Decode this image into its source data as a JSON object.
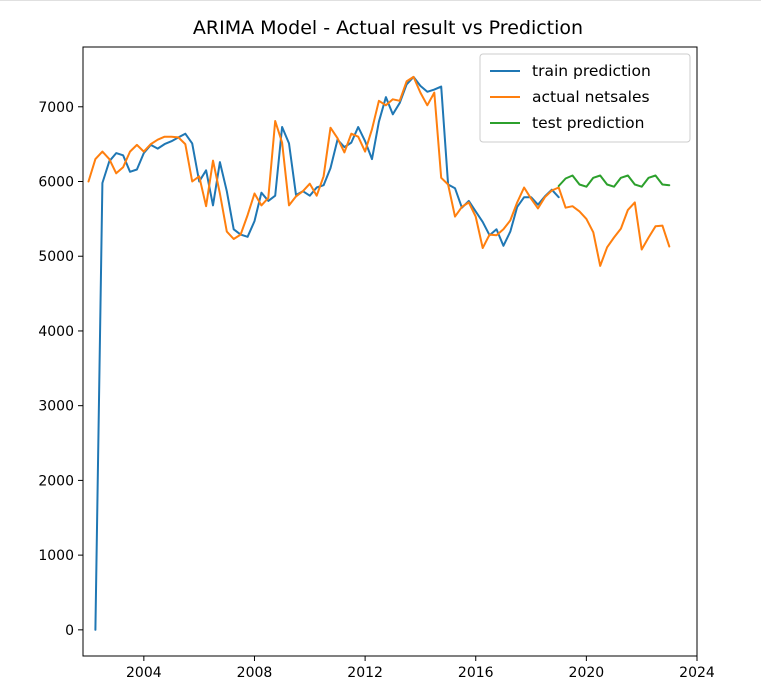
{
  "chart_data": {
    "type": "line",
    "title": "ARIMA Model - Actual result vs Prediction",
    "xlabel": "",
    "ylabel": "",
    "xlim": [
      2001.8,
      2024.0
    ],
    "ylim": [
      -350,
      7800
    ],
    "x_ticks": [
      2004,
      2008,
      2012,
      2016,
      2020,
      2024
    ],
    "x_tick_labels": [
      "2004",
      "2008",
      "2012",
      "2016",
      "2020",
      "2024"
    ],
    "y_ticks": [
      0,
      1000,
      2000,
      3000,
      4000,
      5000,
      6000,
      7000
    ],
    "y_tick_labels": [
      "0",
      "1000",
      "2000",
      "3000",
      "4000",
      "5000",
      "6000",
      "7000"
    ],
    "grid": false,
    "legend_position": "top-right",
    "series": [
      {
        "name": "train prediction",
        "color": "#1f77b4",
        "x": [
          2002.25,
          2002.5,
          2002.75,
          2003.0,
          2003.25,
          2003.5,
          2003.75,
          2004.0,
          2004.25,
          2004.5,
          2004.75,
          2005.0,
          2005.25,
          2005.5,
          2005.75,
          2006.0,
          2006.25,
          2006.5,
          2006.75,
          2007.0,
          2007.25,
          2007.5,
          2007.75,
          2008.0,
          2008.25,
          2008.5,
          2008.75,
          2009.0,
          2009.25,
          2009.5,
          2009.75,
          2010.0,
          2010.25,
          2010.5,
          2010.75,
          2011.0,
          2011.25,
          2011.5,
          2011.75,
          2012.0,
          2012.25,
          2012.5,
          2012.75,
          2013.0,
          2013.25,
          2013.5,
          2013.75,
          2014.0,
          2014.25,
          2014.5,
          2014.75,
          2015.0,
          2015.25,
          2015.5,
          2015.75,
          2016.0,
          2016.25,
          2016.5,
          2016.75,
          2017.0,
          2017.25,
          2017.5,
          2017.75,
          2018.0,
          2018.25,
          2018.5,
          2018.75,
          2019.0
        ],
        "values": [
          0,
          5980,
          6270,
          6380,
          6350,
          6130,
          6160,
          6380,
          6490,
          6440,
          6500,
          6540,
          6590,
          6640,
          6510,
          6000,
          6150,
          5680,
          6260,
          5870,
          5360,
          5290,
          5260,
          5470,
          5850,
          5740,
          5810,
          6730,
          6510,
          5820,
          5870,
          5810,
          5920,
          5950,
          6180,
          6560,
          6460,
          6520,
          6730,
          6540,
          6300,
          6800,
          7130,
          6900,
          7050,
          7300,
          7400,
          7280,
          7200,
          7230,
          7270,
          5960,
          5910,
          5650,
          5740,
          5600,
          5460,
          5280,
          5360,
          5140,
          5330,
          5660,
          5790,
          5790,
          5690,
          5800,
          5890,
          5790
        ],
        "legend": "train prediction"
      },
      {
        "name": "actual netsales",
        "color": "#ff7f0e",
        "x": [
          2002.0,
          2002.25,
          2002.5,
          2002.75,
          2003.0,
          2003.25,
          2003.5,
          2003.75,
          2004.0,
          2004.25,
          2004.5,
          2004.75,
          2005.0,
          2005.25,
          2005.5,
          2005.75,
          2006.0,
          2006.25,
          2006.5,
          2006.75,
          2007.0,
          2007.25,
          2007.5,
          2007.75,
          2008.0,
          2008.25,
          2008.5,
          2008.75,
          2009.0,
          2009.25,
          2009.5,
          2009.75,
          2010.0,
          2010.25,
          2010.5,
          2010.75,
          2011.0,
          2011.25,
          2011.5,
          2011.75,
          2012.0,
          2012.25,
          2012.5,
          2012.75,
          2013.0,
          2013.25,
          2013.5,
          2013.75,
          2014.0,
          2014.25,
          2014.5,
          2014.75,
          2015.0,
          2015.25,
          2015.5,
          2015.75,
          2016.0,
          2016.25,
          2016.5,
          2016.75,
          2017.0,
          2017.25,
          2017.5,
          2017.75,
          2018.0,
          2018.25,
          2018.5,
          2018.75,
          2019.0,
          2019.25,
          2019.5,
          2019.75,
          2020.0,
          2020.25,
          2020.5,
          2020.75,
          2021.0,
          2021.25,
          2021.5,
          2021.75,
          2022.0,
          2022.25,
          2022.5,
          2022.75,
          2023.0
        ],
        "values": [
          6000,
          6300,
          6400,
          6300,
          6110,
          6190,
          6400,
          6490,
          6400,
          6500,
          6560,
          6600,
          6600,
          6590,
          6500,
          6000,
          6070,
          5670,
          6280,
          5840,
          5330,
          5230,
          5290,
          5550,
          5840,
          5680,
          5780,
          6810,
          6520,
          5680,
          5800,
          5870,
          5970,
          5810,
          6070,
          6720,
          6580,
          6390,
          6640,
          6600,
          6400,
          6700,
          7080,
          7020,
          7100,
          7080,
          7340,
          7400,
          7190,
          7020,
          7190,
          6050,
          5960,
          5530,
          5660,
          5720,
          5530,
          5110,
          5290,
          5280,
          5360,
          5480,
          5720,
          5920,
          5770,
          5640,
          5790,
          5880,
          5920,
          5650,
          5670,
          5600,
          5500,
          5320,
          4870,
          5120,
          5250,
          5370,
          5620,
          5720,
          5090,
          5250,
          5400,
          5410,
          5130
        ],
        "legend": "actual netsales"
      },
      {
        "name": "test prediction",
        "color": "#2ca02c",
        "x": [
          2019.0,
          2019.25,
          2019.5,
          2019.75,
          2020.0,
          2020.25,
          2020.5,
          2020.75,
          2021.0,
          2021.25,
          2021.5,
          2021.75,
          2022.0,
          2022.25,
          2022.5,
          2022.75,
          2023.0
        ],
        "values": [
          5940,
          6040,
          6080,
          5960,
          5930,
          6050,
          6080,
          5960,
          5930,
          6050,
          6080,
          5960,
          5930,
          6050,
          6080,
          5960,
          5950
        ],
        "legend": "test prediction"
      }
    ]
  }
}
